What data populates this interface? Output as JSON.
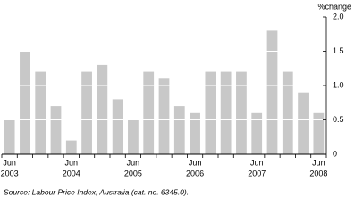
{
  "chart_data": {
    "type": "bar",
    "y_label": "%change",
    "source": "Source: Labour Price Index, Australia (cat. no. 6345.0).",
    "categories": [
      "Jun",
      null,
      null,
      null,
      "Jun",
      null,
      null,
      null,
      "Jun",
      null,
      null,
      null,
      "Jun",
      null,
      null,
      null,
      "Jun",
      null,
      null,
      null,
      "Jun"
    ],
    "category_groups": [
      "2003",
      null,
      null,
      null,
      "2004",
      null,
      null,
      null,
      "2005",
      null,
      null,
      null,
      "2006",
      null,
      null,
      null,
      "2007",
      null,
      null,
      null,
      "2008"
    ],
    "values": [
      0.5,
      1.5,
      1.2,
      0.7,
      0.2,
      1.2,
      1.3,
      0.8,
      0.5,
      1.2,
      1.1,
      0.7,
      0.6,
      1.2,
      1.2,
      1.2,
      0.6,
      1.8,
      1.2,
      0.9,
      0.6
    ],
    "color": "#c8c8c8",
    "ylim": [
      0,
      2
    ],
    "yticks": [
      0,
      0.5,
      {
        "value": 1,
        "label": "1.0"
      },
      1.5,
      {
        "value": 2,
        "label": "2.0"
      }
    ],
    "grid": true
  }
}
